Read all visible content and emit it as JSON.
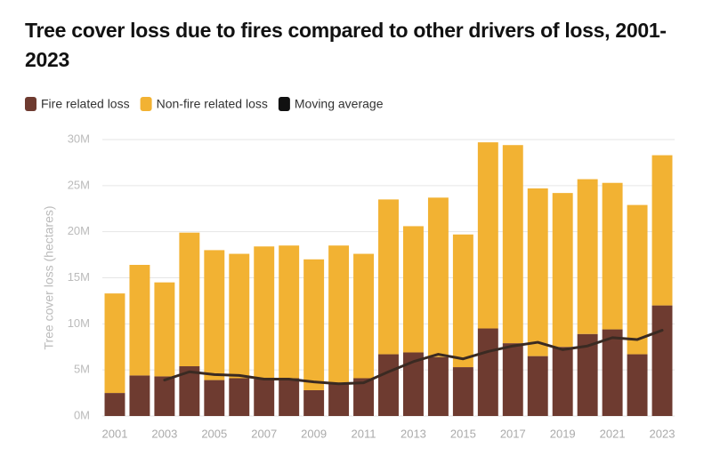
{
  "chart_data": {
    "type": "stacked_bar",
    "title": "Tree cover loss due to fires compared to other drivers of loss, 2001-2023",
    "y_label": "Tree cover loss (hectares)",
    "categories": [
      "2001",
      null,
      "2003",
      null,
      "2005",
      null,
      "2007",
      null,
      "2009",
      null,
      "2011",
      null,
      "2013",
      null,
      "2015",
      null,
      "2017",
      null,
      "2019",
      null,
      "2021",
      null,
      "2023"
    ],
    "series": [
      {
        "name": "Fire related loss",
        "color": "#6e3b30",
        "type": "bar",
        "values": [
          2500000,
          4400000,
          4300000,
          5400000,
          3900000,
          4100000,
          4000000,
          4100000,
          2800000,
          3600000,
          4100000,
          6700000,
          6900000,
          6400000,
          5300000,
          9500000,
          7900000,
          6500000,
          7500000,
          8900000,
          9400000,
          6700000,
          12000000
        ]
      },
      {
        "name": "Non-fire related loss",
        "color": "#f2b233",
        "type": "bar",
        "values": [
          10800000,
          12000000,
          10200000,
          14500000,
          14100000,
          13500000,
          14400000,
          14400000,
          14200000,
          14900000,
          13500000,
          16800000,
          13700000,
          17300000,
          14400000,
          20200000,
          21500000,
          18200000,
          16700000,
          16800000,
          15900000,
          16200000,
          16300000
        ]
      },
      {
        "name": "Moving average",
        "color": "#3a2a22",
        "type": "line",
        "values": [
          null,
          null,
          3900000,
          4800000,
          4500000,
          4400000,
          4000000,
          4000000,
          3700000,
          3500000,
          3600000,
          4800000,
          5900000,
          6700000,
          6200000,
          7000000,
          7600000,
          8000000,
          7200000,
          7600000,
          8500000,
          8300000,
          9300000
        ]
      }
    ],
    "ylim": [
      0,
      30000000
    ],
    "yticks": [
      {
        "value": 0,
        "label": "0M"
      },
      {
        "value": 5000000,
        "label": "5M"
      },
      {
        "value": 10000000,
        "label": "10M"
      },
      {
        "value": 15000000,
        "label": "15M"
      },
      {
        "value": 20000000,
        "label": "20M"
      },
      {
        "value": 25000000,
        "label": "25M"
      },
      {
        "value": 30000000,
        "label": "30M"
      }
    ],
    "grid": true
  }
}
